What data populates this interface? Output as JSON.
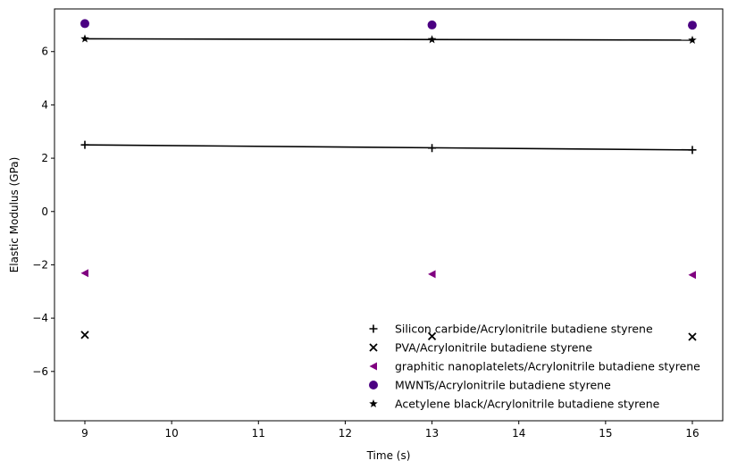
{
  "chart_data": {
    "type": "scatter",
    "xlabel": "Time (s)",
    "ylabel": "Elastic Modulus (GPa)",
    "xlim": [
      8.65,
      16.35
    ],
    "ylim": [
      -7.85,
      7.6
    ],
    "xticks": [
      9,
      10,
      11,
      12,
      13,
      14,
      15,
      16
    ],
    "yticks": [
      -6,
      -4,
      -2,
      0,
      2,
      4,
      6
    ],
    "grid": false,
    "legend_position": "lower-right",
    "series": [
      {
        "name": "Silicon carbide/Acrylonitrile butadiene styrene",
        "marker": "plus",
        "color": "#000000",
        "x": [
          9,
          13,
          16
        ],
        "y": [
          2.5,
          2.38,
          2.31
        ],
        "fit_line": [
          2.5,
          2.31
        ]
      },
      {
        "name": "PVA/Acrylonitrile butadiene styrene",
        "marker": "x",
        "color": "#000000",
        "x": [
          9,
          13,
          16
        ],
        "y": [
          -4.63,
          -4.68,
          -4.7
        ]
      },
      {
        "name": "graphitic nanoplatelets/Acrylonitrile butadiene styrene",
        "marker": "triangle-left",
        "color": "#800080",
        "x": [
          9,
          13,
          16
        ],
        "y": [
          -2.31,
          -2.35,
          -2.38
        ]
      },
      {
        "name": "MWNTs/Acrylonitrile butadiene styrene",
        "marker": "circle",
        "color": "#4b0082",
        "x": [
          9,
          13,
          16
        ],
        "y": [
          7.05,
          7.0,
          6.99
        ]
      },
      {
        "name": "Acetylene black/Acrylonitrile butadiene styrene",
        "marker": "star",
        "color": "#000000",
        "x": [
          9,
          13,
          16
        ],
        "y": [
          6.48,
          6.45,
          6.43
        ],
        "fit_line": [
          6.48,
          6.43
        ]
      }
    ]
  }
}
